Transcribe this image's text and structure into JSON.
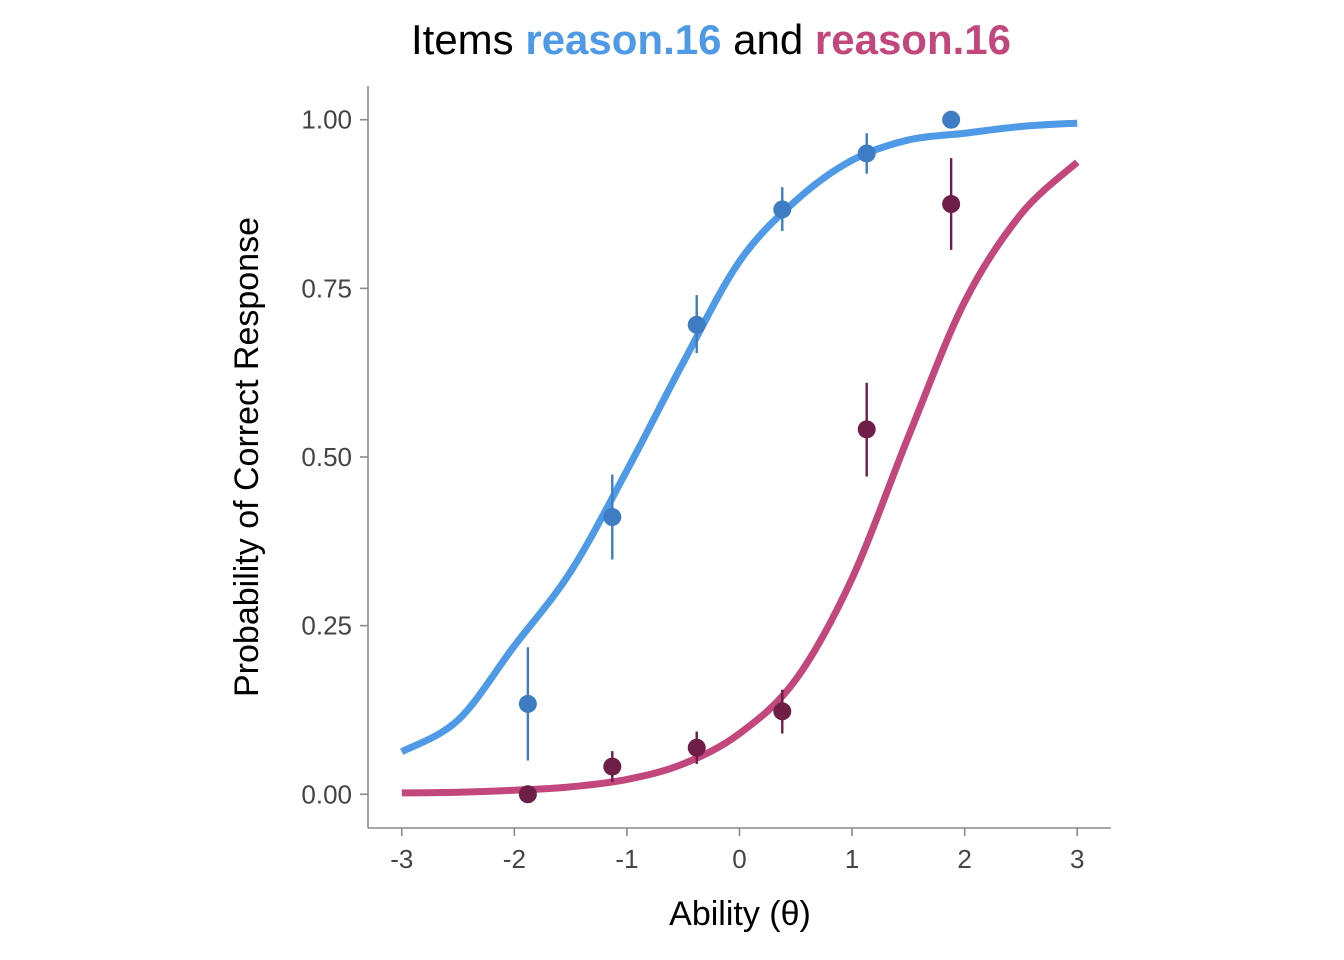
{
  "chart_data": {
    "type": "line",
    "title": {
      "prefix": "Items ",
      "item1": "reason.16",
      "connector": " and ",
      "item2": "reason.16"
    },
    "xlabel": "Ability (θ)",
    "ylabel": "Probability of Correct Response",
    "xlim": [
      -3.3,
      3.3
    ],
    "ylim": [
      -0.05,
      1.05
    ],
    "x_ticks": [
      -3,
      -2,
      -1,
      0,
      1,
      2,
      3
    ],
    "x_tick_labels": [
      "-3",
      "-2",
      "-1",
      "0",
      "1",
      "2",
      "3"
    ],
    "y_ticks": [
      0,
      0.25,
      0.5,
      0.75,
      1
    ],
    "y_tick_labels": [
      "0.00",
      "0.25",
      "0.50",
      "0.75",
      "1.00"
    ],
    "grid": false,
    "legend": "none",
    "series": [
      {
        "color": "#4e9ae6",
        "point_color": "#3e7cc4",
        "curve": [
          {
            "x": -3.0,
            "y": 0.063
          },
          {
            "x": -2.5,
            "y": 0.11
          },
          {
            "x": -2.0,
            "y": 0.22
          },
          {
            "x": -1.5,
            "y": 0.33
          },
          {
            "x": -1.0,
            "y": 0.48
          },
          {
            "x": -0.5,
            "y": 0.64
          },
          {
            "x": 0.0,
            "y": 0.79
          },
          {
            "x": 0.5,
            "y": 0.88
          },
          {
            "x": 1.0,
            "y": 0.94
          },
          {
            "x": 1.5,
            "y": 0.97
          },
          {
            "x": 2.0,
            "y": 0.98
          },
          {
            "x": 2.5,
            "y": 0.99
          },
          {
            "x": 3.0,
            "y": 0.995
          }
        ],
        "points": [
          {
            "x": -1.88,
            "y": 0.134,
            "lo": 0.05,
            "hi": 0.218
          },
          {
            "x": -1.13,
            "y": 0.411,
            "lo": 0.348,
            "hi": 0.474
          },
          {
            "x": -0.38,
            "y": 0.696,
            "lo": 0.654,
            "hi": 0.74
          },
          {
            "x": 0.38,
            "y": 0.867,
            "lo": 0.835,
            "hi": 0.9
          },
          {
            "x": 1.13,
            "y": 0.95,
            "lo": 0.92,
            "hi": 0.98
          },
          {
            "x": 1.88,
            "y": 1.0,
            "lo": 1.0,
            "hi": 1.0
          }
        ]
      },
      {
        "color": "#c2477c",
        "point_color": "#6e1e47",
        "curve": [
          {
            "x": -3.0,
            "y": 0.002
          },
          {
            "x": -2.5,
            "y": 0.003
          },
          {
            "x": -2.0,
            "y": 0.006
          },
          {
            "x": -1.5,
            "y": 0.011
          },
          {
            "x": -1.0,
            "y": 0.022
          },
          {
            "x": -0.5,
            "y": 0.045
          },
          {
            "x": 0.0,
            "y": 0.09
          },
          {
            "x": 0.5,
            "y": 0.17
          },
          {
            "x": 1.0,
            "y": 0.32
          },
          {
            "x": 1.5,
            "y": 0.53
          },
          {
            "x": 2.0,
            "y": 0.73
          },
          {
            "x": 2.5,
            "y": 0.86
          },
          {
            "x": 3.0,
            "y": 0.937
          }
        ],
        "points": [
          {
            "x": -1.88,
            "y": 0.0,
            "lo": 0.0,
            "hi": 0.0
          },
          {
            "x": -1.13,
            "y": 0.041,
            "lo": 0.018,
            "hi": 0.064
          },
          {
            "x": -0.38,
            "y": 0.069,
            "lo": 0.045,
            "hi": 0.093
          },
          {
            "x": 0.38,
            "y": 0.123,
            "lo": 0.09,
            "hi": 0.155
          },
          {
            "x": 1.13,
            "y": 0.541,
            "lo": 0.471,
            "hi": 0.61
          },
          {
            "x": 1.88,
            "y": 0.875,
            "lo": 0.807,
            "hi": 0.943
          }
        ]
      }
    ]
  }
}
